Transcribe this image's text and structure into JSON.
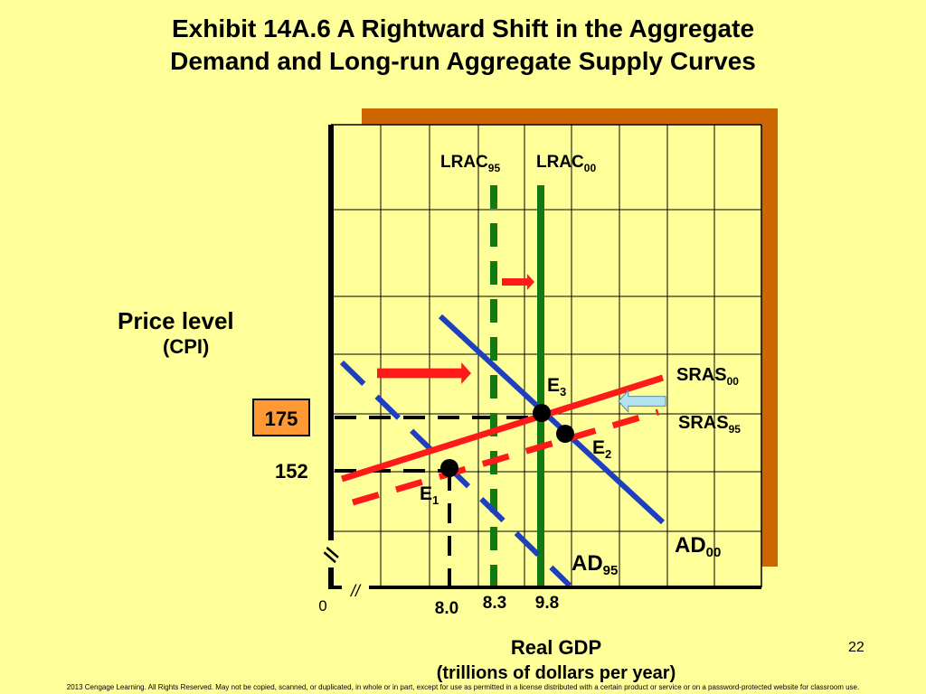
{
  "slide": {
    "title_line1": "Exhibit 14A.6 A Rightward Shift in the Aggregate",
    "title_line2": "Demand and Long-run Aggregate Supply Curves",
    "page_number": "22",
    "footer": "2013 Cengage Learning. All Rights Reserved. May not be copied, scanned, or duplicated, in whole or in part, except for use as permitted in a license distributed with a certain product or service or on a password-protected website for classroom use."
  },
  "colors": {
    "background": "#ffff99",
    "shadow": "#cc6600",
    "ad": "#1e3fbf",
    "sras": "#ff1a1a",
    "lrac": "#117a11",
    "highlight_box": "#ff9933",
    "shift_arrow_left": "#b4e3f0"
  },
  "chart_data": {
    "type": "line",
    "title": "",
    "xlabel": "Real GDP",
    "xlabel_unit": "(trillions of dollars per year)",
    "ylabel": "Price level",
    "ylabel_unit": "(CPI)",
    "origin_label": "0",
    "axis_break_marks": [
      "//",
      "//"
    ],
    "x_ticks": [
      "8.0",
      "8.3",
      "9.8"
    ],
    "y_ticks": [
      "152",
      "175"
    ],
    "highlighted_y_tick": "175",
    "grid": true,
    "series": [
      {
        "name": "AD95",
        "label": "AD",
        "sub": "95",
        "style": "dashed",
        "color": "#1e3fbf"
      },
      {
        "name": "AD00",
        "label": "AD",
        "sub": "00",
        "style": "solid",
        "color": "#1e3fbf"
      },
      {
        "name": "SRAS95",
        "label": "SRAS",
        "sub": "95",
        "style": "dashed",
        "color": "#ff1a1a"
      },
      {
        "name": "SRAS00",
        "label": "SRAS",
        "sub": "00",
        "style": "solid",
        "color": "#ff1a1a"
      },
      {
        "name": "LRAC95",
        "label": "LRAC",
        "sub": "95",
        "style": "dashed",
        "color": "#117a11",
        "x": 8.3
      },
      {
        "name": "LRAC00",
        "label": "LRAC",
        "sub": "00",
        "style": "solid",
        "color": "#117a11",
        "x": 9.8
      }
    ],
    "equilibria": [
      {
        "name": "E1",
        "label": "E",
        "sub": "1",
        "x": 8.0,
        "y": 152
      },
      {
        "name": "E2",
        "label": "E",
        "sub": "2"
      },
      {
        "name": "E3",
        "label": "E",
        "sub": "3",
        "x": 9.8,
        "y": 175
      }
    ],
    "shifts": [
      {
        "name": "AD-shift",
        "direction": "right",
        "color": "#ff1a1a"
      },
      {
        "name": "LRAC-shift",
        "direction": "right",
        "color": "#ff1a1a"
      },
      {
        "name": "SRAS-shift",
        "direction": "left",
        "color": "#b4e3f0"
      }
    ]
  }
}
